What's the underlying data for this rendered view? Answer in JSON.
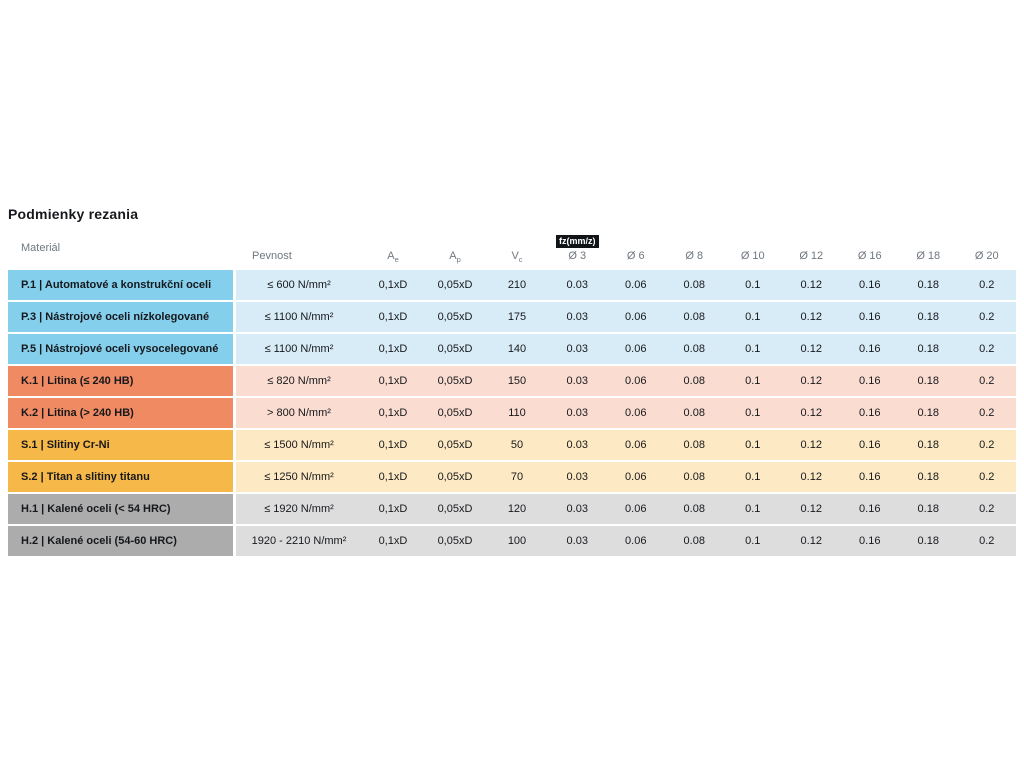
{
  "page": {
    "title": "Podmienky rezania"
  },
  "table": {
    "headers": {
      "material": "Materiál",
      "pevnost": "Pevnost",
      "ae": {
        "base": "A",
        "sub": "e"
      },
      "ap": {
        "base": "A",
        "sub": "p"
      },
      "vc": {
        "base": "V",
        "sub": "c"
      },
      "fz_badge": "fz(mm/z)",
      "diameters": [
        "Ø 3",
        "Ø 6",
        "Ø 8",
        "Ø 10",
        "Ø 12",
        "Ø 16",
        "Ø 18",
        "Ø 20"
      ]
    },
    "group_colors": {
      "P": {
        "label": "#84cfec",
        "band": "#d8ecf7"
      },
      "K": {
        "label": "#f08a62",
        "band": "#fadcd0"
      },
      "S": {
        "label": "#f6b848",
        "band": "#fde9c3"
      },
      "H": {
        "label": "#acacac",
        "band": "#dddddd"
      }
    },
    "rows": [
      {
        "group": "P",
        "material": "P.1 | Automatové a konstrukční oceli",
        "pevnost": "≤ 600 N/mm²",
        "ae": "0,1xD",
        "ap": "0,05xD",
        "vc": "210",
        "fz": [
          "0.03",
          "0.06",
          "0.08",
          "0.1",
          "0.12",
          "0.16",
          "0.18",
          "0.2"
        ]
      },
      {
        "group": "P",
        "material": "P.3 | Nástrojové oceli nízkolegované",
        "pevnost": "≤ 1100 N/mm²",
        "ae": "0,1xD",
        "ap": "0,05xD",
        "vc": "175",
        "fz": [
          "0.03",
          "0.06",
          "0.08",
          "0.1",
          "0.12",
          "0.16",
          "0.18",
          "0.2"
        ]
      },
      {
        "group": "P",
        "material": "P.5 | Nástrojové oceli vysocelegované",
        "pevnost": "≤ 1100 N/mm²",
        "ae": "0,1xD",
        "ap": "0,05xD",
        "vc": "140",
        "fz": [
          "0.03",
          "0.06",
          "0.08",
          "0.1",
          "0.12",
          "0.16",
          "0.18",
          "0.2"
        ]
      },
      {
        "group": "K",
        "material": "K.1 | Litina (≤ 240 HB)",
        "pevnost": "≤ 820 N/mm²",
        "ae": "0,1xD",
        "ap": "0,05xD",
        "vc": "150",
        "fz": [
          "0.03",
          "0.06",
          "0.08",
          "0.1",
          "0.12",
          "0.16",
          "0.18",
          "0.2"
        ]
      },
      {
        "group": "K",
        "material": "K.2 | Litina (> 240 HB)",
        "pevnost": "> 800 N/mm²",
        "ae": "0,1xD",
        "ap": "0,05xD",
        "vc": "110",
        "fz": [
          "0.03",
          "0.06",
          "0.08",
          "0.1",
          "0.12",
          "0.16",
          "0.18",
          "0.2"
        ]
      },
      {
        "group": "S",
        "material": "S.1 | Slitiny Cr-Ni",
        "pevnost": "≤ 1500 N/mm²",
        "ae": "0,1xD",
        "ap": "0,05xD",
        "vc": "50",
        "fz": [
          "0.03",
          "0.06",
          "0.08",
          "0.1",
          "0.12",
          "0.16",
          "0.18",
          "0.2"
        ]
      },
      {
        "group": "S",
        "material": "S.2 | Titan a slitiny titanu",
        "pevnost": "≤ 1250 N/mm²",
        "ae": "0,1xD",
        "ap": "0,05xD",
        "vc": "70",
        "fz": [
          "0.03",
          "0.06",
          "0.08",
          "0.1",
          "0.12",
          "0.16",
          "0.18",
          "0.2"
        ]
      },
      {
        "group": "H",
        "material": "H.1 | Kalené oceli (< 54 HRC)",
        "pevnost": "≤ 1920 N/mm²",
        "ae": "0,1xD",
        "ap": "0,05xD",
        "vc": "120",
        "fz": [
          "0.03",
          "0.06",
          "0.08",
          "0.1",
          "0.12",
          "0.16",
          "0.18",
          "0.2"
        ]
      },
      {
        "group": "H",
        "material": "H.2 | Kalené oceli (54-60 HRC)",
        "pevnost": "1920 - 2210 N/mm²",
        "ae": "0,1xD",
        "ap": "0,05xD",
        "vc": "100",
        "fz": [
          "0.03",
          "0.06",
          "0.08",
          "0.1",
          "0.12",
          "0.16",
          "0.18",
          "0.2"
        ]
      }
    ]
  }
}
